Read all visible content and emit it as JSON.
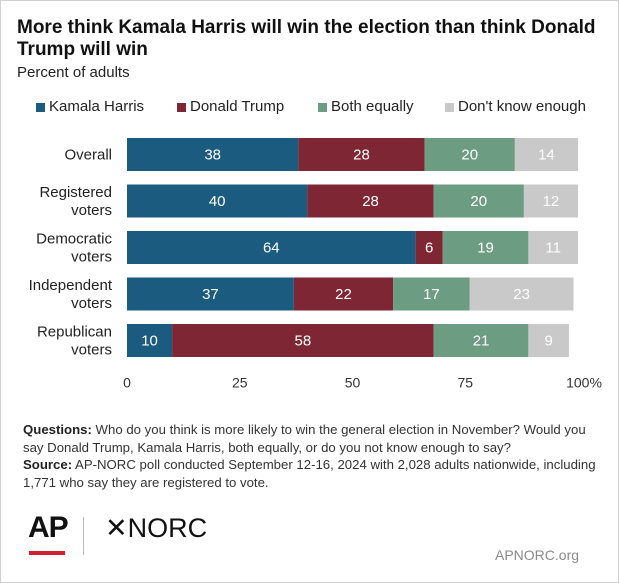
{
  "chart_data": {
    "type": "bar",
    "orientation": "horizontal",
    "stacked": true,
    "title": "More think Kamala Harris will win the election than think Donald Trump will win",
    "subtitle": "Percent of adults",
    "categories": [
      "Overall",
      "Registered voters",
      "Democratic voters",
      "Independent voters",
      "Republican voters"
    ],
    "series": [
      {
        "name": "Kamala Harris",
        "color": "#1b5b7f",
        "values": [
          38,
          40,
          64,
          37,
          10
        ]
      },
      {
        "name": "Donald Trump",
        "color": "#7e2633",
        "values": [
          28,
          28,
          6,
          22,
          58
        ]
      },
      {
        "name": "Both equally",
        "color": "#6c9c82",
        "values": [
          20,
          20,
          19,
          17,
          21
        ]
      },
      {
        "name": "Don't know enough",
        "color": "#c9c9c9",
        "values": [
          14,
          12,
          11,
          23,
          9
        ]
      }
    ],
    "x_ticks": [
      "0",
      "25",
      "50",
      "75",
      "100%"
    ],
    "xlim": [
      0,
      100
    ],
    "legend_position": "top",
    "grid": false
  },
  "notes": {
    "questions_label": "Questions:",
    "questions_text": "Who do you think is more likely to win the general election in November? Would you say Donald Trump, Kamala Harris, both equally, or do you not know enough to say?",
    "source_label": "Source:",
    "source_text": "AP-NORC poll conducted September 12-16, 2024 with 2,028 adults nationwide, including 1,771 who say they are registered to vote."
  },
  "branding": {
    "ap_logo": "AP",
    "norc_logo": "✕NORC",
    "site": "APNORC.org"
  }
}
